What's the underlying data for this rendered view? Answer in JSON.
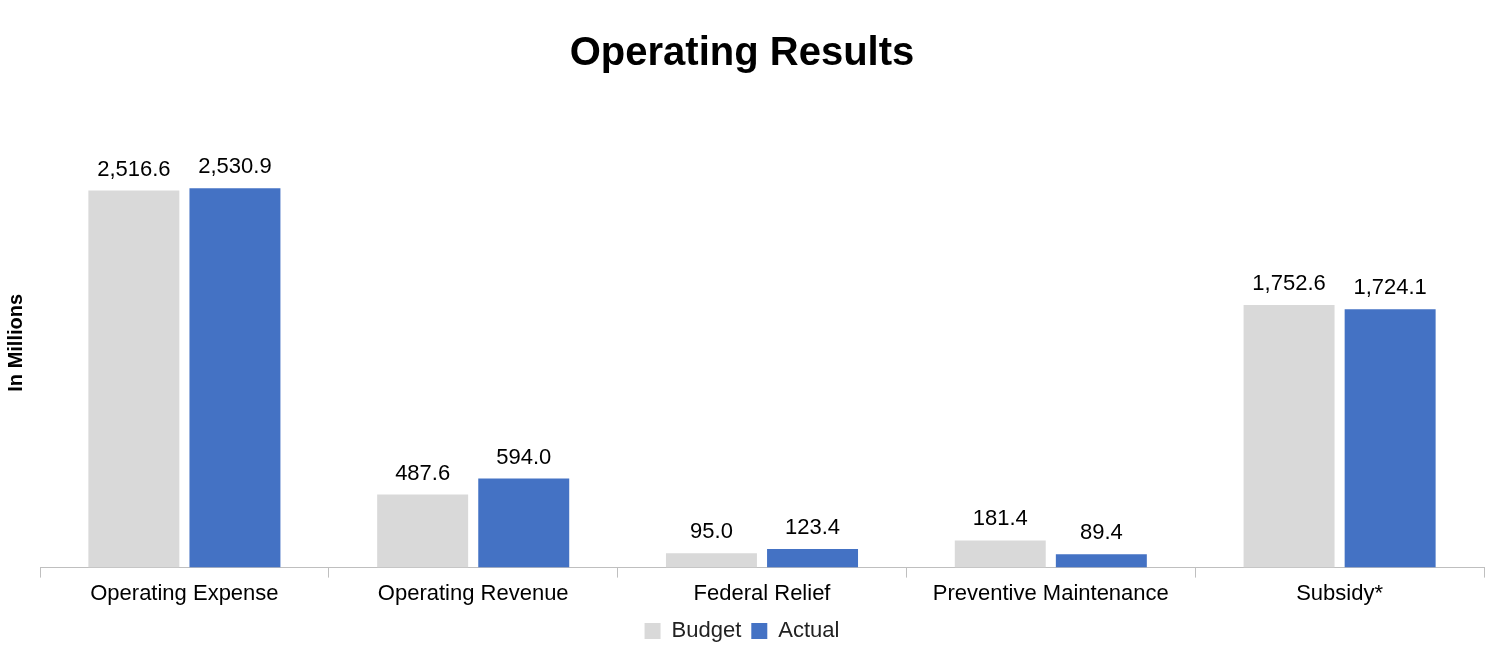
{
  "chart_data": {
    "type": "bar",
    "title": "Operating Results",
    "ylabel": "In Millions",
    "categories": [
      "Operating Expense",
      "Operating Revenue",
      "Federal Relief",
      "Preventive Maintenance",
      "Subsidy*"
    ],
    "series": [
      {
        "name": "Budget",
        "color": "#d9d9d9",
        "values": [
          2516.6,
          487.6,
          95.0,
          181.4,
          1752.6
        ],
        "value_labels": [
          "2,516.6",
          "487.6",
          "95.0",
          "181.4",
          "1,752.6"
        ]
      },
      {
        "name": "Actual",
        "color": "#4472c4",
        "values": [
          2530.9,
          594.0,
          123.4,
          89.4,
          1724.1
        ],
        "value_labels": [
          "2,530.9",
          "594.0",
          "123.4",
          "89.4",
          "1,724.1"
        ]
      }
    ],
    "grid": false,
    "legend": "bottom"
  }
}
